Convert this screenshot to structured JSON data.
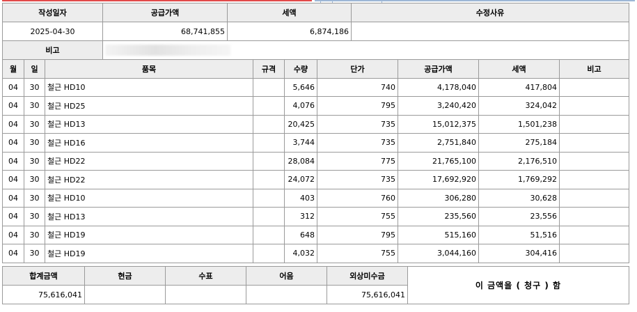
{
  "header": {
    "labels": {
      "date": "작성일자",
      "supply": "공급가액",
      "tax": "세액",
      "reason": "수정사유",
      "memo": "비고"
    },
    "date": "2025-04-30",
    "supply": "68,741,855",
    "tax": "6,874,186",
    "reason": "",
    "memo": ""
  },
  "items": {
    "columns": [
      "월",
      "일",
      "품목",
      "규격",
      "수량",
      "단가",
      "공급가액",
      "세액",
      "비고"
    ],
    "rows": [
      [
        "04",
        "30",
        "철근 HD10",
        "",
        "5,646",
        "740",
        "4,178,040",
        "417,804",
        ""
      ],
      [
        "04",
        "30",
        "철근 HD25",
        "",
        "4,076",
        "795",
        "3,240,420",
        "324,042",
        ""
      ],
      [
        "04",
        "30",
        "철근 HD13",
        "",
        "20,425",
        "735",
        "15,012,375",
        "1,501,238",
        ""
      ],
      [
        "04",
        "30",
        "철근 HD16",
        "",
        "3,744",
        "735",
        "2,751,840",
        "275,184",
        ""
      ],
      [
        "04",
        "30",
        "철근 HD22",
        "",
        "28,084",
        "775",
        "21,765,100",
        "2,176,510",
        ""
      ],
      [
        "04",
        "30",
        "철근 HD22",
        "",
        "24,072",
        "735",
        "17,692,920",
        "1,769,292",
        ""
      ],
      [
        "04",
        "30",
        "철근 HD10",
        "",
        "403",
        "760",
        "306,280",
        "30,628",
        ""
      ],
      [
        "04",
        "30",
        "철근 HD13",
        "",
        "312",
        "755",
        "235,560",
        "23,556",
        ""
      ],
      [
        "04",
        "30",
        "철근 HD19",
        "",
        "648",
        "795",
        "515,160",
        "51,516",
        ""
      ],
      [
        "04",
        "30",
        "철근 HD19",
        "",
        "4,032",
        "755",
        "3,044,160",
        "304,416",
        ""
      ]
    ]
  },
  "footer": {
    "labels": {
      "total": "합계금액",
      "cash": "현금",
      "check": "수표",
      "note": "어음",
      "credit": "외상미수금"
    },
    "total": "75,616,041",
    "cash": "",
    "check": "",
    "note": "",
    "credit": "75,616,041",
    "claim_text": "이 금액을  ( 청구 )  함"
  }
}
